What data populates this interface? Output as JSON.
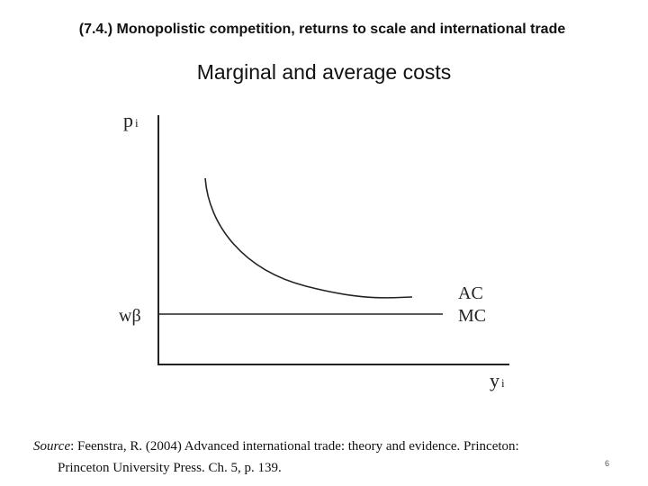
{
  "header": {
    "title": "(7.4.) Monopolistic competition, returns to scale and international trade"
  },
  "subtitle": "Marginal and average costs",
  "diagram": {
    "y_axis_label": {
      "main": "p",
      "sub": "i"
    },
    "x_axis_label": {
      "main": "y",
      "sub": "i"
    },
    "level_label": "wβ",
    "curves": [
      "AC",
      "MC"
    ]
  },
  "source": {
    "label": "Source",
    "line1": ": Feenstra, R. (2004) Advanced international trade: theory and evidence. Princeton:",
    "line2": "Princeton University Press. Ch. 5, p. 139."
  },
  "page_number": "6"
}
